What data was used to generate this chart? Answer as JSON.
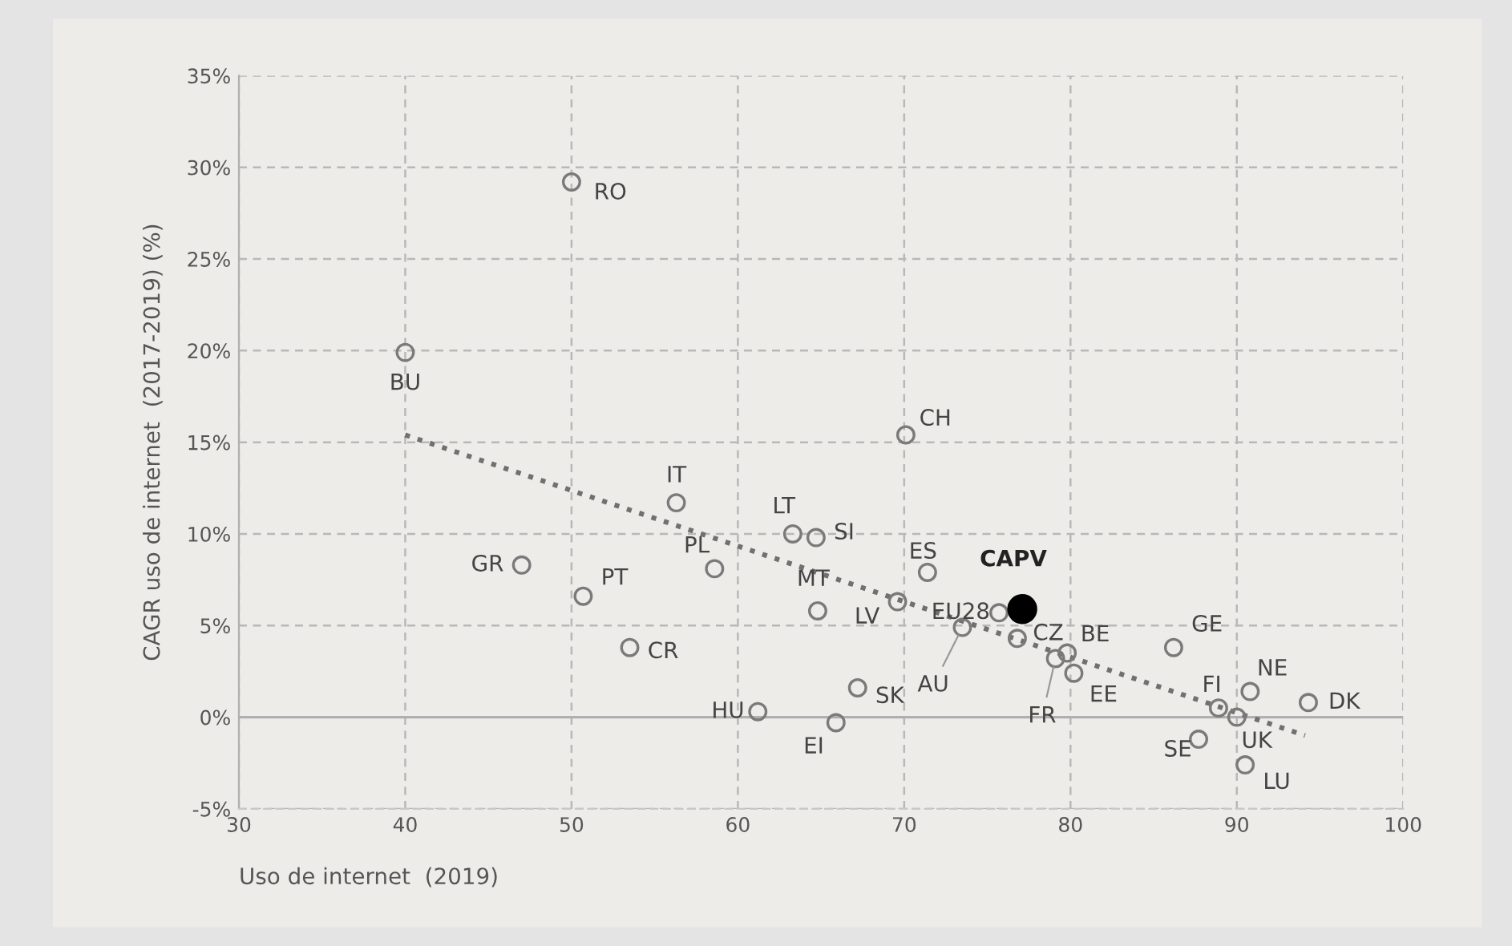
{
  "chart_data": {
    "type": "scatter",
    "xlabel": "Uso de internet  (2019)",
    "ylabel": "CAGR uso de internet  (2017-2019) (%)",
    "xlim": [
      30,
      100
    ],
    "xticks": [
      30,
      40,
      50,
      60,
      70,
      80,
      90,
      100
    ],
    "ylim": [
      -5,
      35
    ],
    "yticks": [
      {
        "value": -5,
        "label": "-5%"
      },
      {
        "value": 0,
        "label": "0%"
      },
      {
        "value": 5,
        "label": "5%"
      },
      {
        "value": 10,
        "label": "10%"
      },
      {
        "value": 15,
        "label": "15%"
      },
      {
        "value": 20,
        "label": "20%"
      },
      {
        "value": 25,
        "label": "25%"
      },
      {
        "value": 30,
        "label": "30%"
      },
      {
        "value": 35,
        "label": "35%"
      }
    ],
    "grid": true,
    "marker": "circle",
    "ref_lines": [
      {
        "axis": "y",
        "value": 0,
        "color": "#b0b0b0"
      }
    ],
    "series": [
      {
        "color": "#7a7a7a",
        "x": [
          50.0,
          40.0,
          56.3,
          63.3,
          64.7,
          47.0,
          58.6,
          50.7,
          64.8,
          53.5,
          61.2,
          67.2,
          65.9,
          69.6,
          71.4,
          70.1,
          75.7,
          73.5,
          76.8,
          79.8,
          79.1,
          80.2,
          86.2,
          88.9,
          90.0,
          90.8,
          94.3,
          87.7,
          90.5
        ],
        "values": [
          29.2,
          19.9,
          11.7,
          10.0,
          9.8,
          8.3,
          8.1,
          6.6,
          5.8,
          3.8,
          0.3,
          1.6,
          -0.3,
          6.3,
          7.9,
          15.4,
          5.7,
          4.9,
          4.3,
          3.5,
          3.2,
          2.4,
          3.8,
          0.5,
          0.0,
          1.4,
          0.8,
          -1.2,
          -2.6
        ]
      },
      {
        "color": "#000000",
        "x": [
          77.1
        ],
        "values": [
          5.9
        ]
      },
      {
        "type": "line",
        "color": "#707070",
        "line_style": "dotted",
        "marker": "none",
        "x": [
          40,
          94.1
        ],
        "values": [
          15.4,
          -1.0
        ]
      }
    ],
    "annotations": [
      {
        "text": "RO",
        "x": 50.0,
        "y": 29.2
      },
      {
        "text": "BU",
        "x": 40.0,
        "y": 19.9
      },
      {
        "text": "IT",
        "x": 56.3,
        "y": 11.7
      },
      {
        "text": "LT",
        "x": 63.3,
        "y": 10.0
      },
      {
        "text": "SI",
        "x": 64.7,
        "y": 9.8
      },
      {
        "text": "GR",
        "x": 47.0,
        "y": 8.3
      },
      {
        "text": "PL",
        "x": 58.6,
        "y": 8.1
      },
      {
        "text": "PT",
        "x": 50.7,
        "y": 6.6
      },
      {
        "text": "MT",
        "x": 64.8,
        "y": 5.8
      },
      {
        "text": "CR",
        "x": 53.5,
        "y": 3.8
      },
      {
        "text": "HU",
        "x": 61.2,
        "y": 0.3
      },
      {
        "text": "SK",
        "x": 67.2,
        "y": 1.6
      },
      {
        "text": "EI",
        "x": 65.9,
        "y": -0.3
      },
      {
        "text": "LV",
        "x": 69.6,
        "y": 6.3
      },
      {
        "text": "ES",
        "x": 71.4,
        "y": 7.9
      },
      {
        "text": "CH",
        "x": 70.1,
        "y": 15.4
      },
      {
        "text": "EU28",
        "x": 75.7,
        "y": 5.7
      },
      {
        "text": "AU",
        "x": 73.5,
        "y": 4.9
      },
      {
        "text": "CZ",
        "x": 76.8,
        "y": 4.3
      },
      {
        "text": "BE",
        "x": 79.8,
        "y": 3.5
      },
      {
        "text": "FR",
        "x": 79.1,
        "y": 3.2
      },
      {
        "text": "EE",
        "x": 80.2,
        "y": 2.4
      },
      {
        "text": "GE",
        "x": 86.2,
        "y": 3.8
      },
      {
        "text": "FI",
        "x": 88.9,
        "y": 0.5
      },
      {
        "text": "UK",
        "x": 90.0,
        "y": 0.0
      },
      {
        "text": "NE",
        "x": 90.8,
        "y": 1.4
      },
      {
        "text": "DK",
        "x": 94.3,
        "y": 0.8
      },
      {
        "text": "SE",
        "x": 87.7,
        "y": -1.2
      },
      {
        "text": "LU",
        "x": 90.5,
        "y": -2.6
      },
      {
        "text": "CAPV",
        "x": 77.1,
        "y": 5.9
      }
    ]
  }
}
